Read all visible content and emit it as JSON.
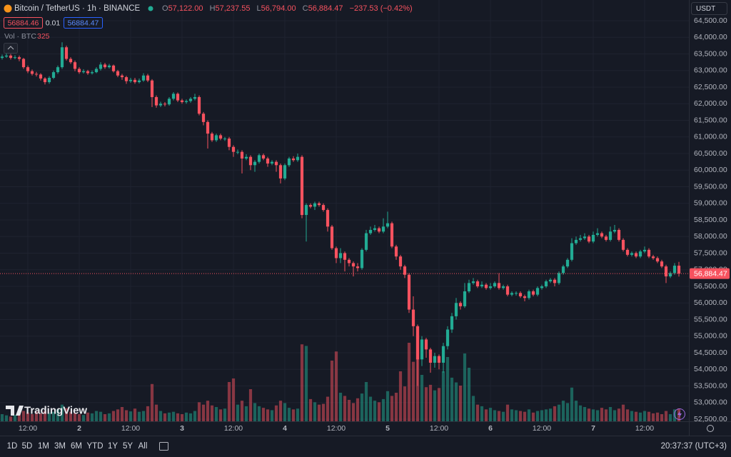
{
  "header": {
    "symbol": "Bitcoin / TetherUS · 1h · BINANCE",
    "ohlc_legend": [
      {
        "label": "O",
        "value": "57,122.00"
      },
      {
        "label": "H",
        "value": "57,237.55"
      },
      {
        "label": "L",
        "value": "56,794.00"
      },
      {
        "label": "C",
        "value": "56,884.47"
      }
    ],
    "change": "−237.53 (−0.42%)",
    "bid": "56884.46",
    "spread": "0.01",
    "ask": "56884.47",
    "volume_label": "Vol · BTC",
    "currency": "USDT",
    "brand": "TradingView"
  },
  "toolbar": {
    "ranges": [
      "1D",
      "5D",
      "1M",
      "3M",
      "6M",
      "YTD",
      "1Y",
      "5Y",
      "All"
    ],
    "clock": "20:37:37 (UTC+3)"
  },
  "chart_data": {
    "type": "candlestick",
    "up_color": "#22ab94",
    "down_color": "#f7525f",
    "grid": true,
    "last_price_label": "56,884.47",
    "xlim": [
      -0.5,
      160.33
    ],
    "xticks": [
      {
        "value": 6,
        "label": "12:00"
      },
      {
        "value": 18,
        "label": "2"
      },
      {
        "value": 30,
        "label": "12:00"
      },
      {
        "value": 42,
        "label": "3"
      },
      {
        "value": 54,
        "label": "12:00"
      },
      {
        "value": 66,
        "label": "4"
      },
      {
        "value": 78,
        "label": "12:00"
      },
      {
        "value": 90,
        "label": "5"
      },
      {
        "value": 102,
        "label": "12:00"
      },
      {
        "value": 114,
        "label": "6"
      },
      {
        "value": 126,
        "label": "12:00"
      },
      {
        "value": 138,
        "label": "7"
      },
      {
        "value": 150,
        "label": "12:00"
      }
    ],
    "ylim": [
      52436,
      65124
    ],
    "yticks": [
      {
        "value": 64500,
        "label": "64,500.00"
      },
      {
        "value": 64000,
        "label": "64,000.00"
      },
      {
        "value": 63500,
        "label": "63,500.00"
      },
      {
        "value": 63000,
        "label": "63,000.00"
      },
      {
        "value": 62500,
        "label": "62,500.00"
      },
      {
        "value": 62000,
        "label": "62,000.00"
      },
      {
        "value": 61500,
        "label": "61,500.00"
      },
      {
        "value": 61000,
        "label": "61,000.00"
      },
      {
        "value": 60500,
        "label": "60,500.00"
      },
      {
        "value": 60000,
        "label": "60,000.00"
      },
      {
        "value": 59500,
        "label": "59,500.00"
      },
      {
        "value": 59000,
        "label": "59,000.00"
      },
      {
        "value": 58500,
        "label": "58,500.00"
      },
      {
        "value": 58000,
        "label": "58,000.00"
      },
      {
        "value": 57500,
        "label": "57,500.00"
      },
      {
        "value": 57000,
        "label": "57,000.00"
      },
      {
        "value": 56500,
        "label": "56,500.00"
      },
      {
        "value": 56000,
        "label": "56,000.00"
      },
      {
        "value": 55500,
        "label": "55,500.00"
      },
      {
        "value": 55000,
        "label": "55,000.00"
      },
      {
        "value": 54500,
        "label": "54,500.00"
      },
      {
        "value": 54000,
        "label": "54,000.00"
      },
      {
        "value": 53500,
        "label": "53,500.00"
      },
      {
        "value": 53000,
        "label": "53,000.00"
      },
      {
        "value": 52500,
        "label": "52,500.00"
      }
    ],
    "volume_lim": [
      0,
      3600
    ],
    "open": [
      63380,
      63420,
      63450,
      63380,
      63400,
      63350,
      63100,
      62980,
      62900,
      62880,
      62760,
      62650,
      62780,
      62950,
      63100,
      63700,
      63350,
      63250,
      63050,
      62950,
      62980,
      62920,
      62950,
      63050,
      63180,
      63100,
      63150,
      62980,
      62850,
      62800,
      62680,
      62720,
      62650,
      62700,
      62850,
      62700,
      62200,
      61950,
      62000,
      61980,
      62150,
      62300,
      62100,
      62050,
      62080,
      62150,
      62200,
      61700,
      61450,
      61100,
      60900,
      61050,
      60950,
      60950,
      60700,
      60550,
      60550,
      60350,
      60400,
      60150,
      60250,
      60450,
      60350,
      60200,
      60250,
      60150,
      59750,
      60150,
      60350,
      60300,
      60400,
      58650,
      58950,
      58900,
      59000,
      58950,
      58800,
      58300,
      57650,
      57350,
      57500,
      57300,
      57200,
      57100,
      57050,
      57600,
      58100,
      58200,
      58250,
      58150,
      58300,
      58400,
      57700,
      57400,
      57100,
      56850,
      55800,
      55300,
      54300,
      54900,
      54600,
      54200,
      54400,
      54200,
      54700,
      55200,
      55600,
      56000,
      55900,
      56350,
      56600,
      56650,
      56500,
      56550,
      56450,
      56500,
      56600,
      56450,
      56500,
      56250,
      56300,
      56300,
      56200,
      56150,
      56350,
      56250,
      56450,
      56500,
      56650,
      56700,
      56600,
      56900,
      57100,
      57300,
      57800,
      57900,
      57950,
      58000,
      57850,
      58050,
      58100,
      58000,
      57900,
      58150,
      58200,
      57900,
      57600,
      57450,
      57500,
      57400,
      57550,
      57600,
      57400,
      57350,
      57250,
      57100,
      56800,
      56900,
      57122
    ],
    "high": [
      63480,
      63520,
      63500,
      63460,
      63450,
      63380,
      63150,
      63030,
      62960,
      62920,
      62800,
      62830,
      63000,
      63150,
      63850,
      63750,
      63400,
      63300,
      63100,
      63040,
      63020,
      63000,
      63100,
      63250,
      63230,
      63200,
      63180,
      63020,
      62900,
      62840,
      62780,
      62780,
      62760,
      62920,
      62900,
      62740,
      62250,
      62060,
      62050,
      62200,
      62350,
      62340,
      62150,
      62130,
      62200,
      62300,
      62250,
      61750,
      61500,
      61150,
      61100,
      61100,
      61000,
      61000,
      60750,
      60620,
      60600,
      60480,
      60450,
      60300,
      60500,
      60500,
      60400,
      60300,
      60300,
      60200,
      60200,
      60400,
      60420,
      60500,
      60450,
      59000,
      59000,
      59050,
      59050,
      59000,
      58850,
      58350,
      57700,
      57650,
      57550,
      57350,
      57250,
      57200,
      57650,
      58200,
      58300,
      58350,
      58300,
      58550,
      58750,
      58450,
      57750,
      57450,
      57150,
      56900,
      56200,
      55350,
      55000,
      54950,
      54650,
      54500,
      54450,
      54800,
      55300,
      55700,
      56150,
      56050,
      56600,
      56700,
      56750,
      56700,
      56650,
      56600,
      56600,
      56650,
      56900,
      56550,
      56550,
      56350,
      56350,
      56350,
      56250,
      56400,
      56400,
      56500,
      56550,
      56700,
      56750,
      56750,
      56950,
      57150,
      57350,
      57950,
      58000,
      58050,
      58100,
      58050,
      58150,
      58250,
      58150,
      58050,
      58300,
      58350,
      58250,
      57950,
      57650,
      57550,
      57550,
      57600,
      57700,
      57650,
      57450,
      57400,
      57300,
      57150,
      56950,
      57200,
      57237.55
    ],
    "low": [
      63330,
      63380,
      63330,
      63340,
      63280,
      63050,
      62920,
      62850,
      62820,
      62700,
      62580,
      62600,
      62740,
      62900,
      63050,
      63300,
      63200,
      62980,
      62900,
      62910,
      62870,
      62880,
      62920,
      63000,
      63050,
      63060,
      62940,
      62800,
      62720,
      62600,
      62630,
      62600,
      62610,
      62660,
      62650,
      61900,
      61880,
      61900,
      61920,
      61940,
      62100,
      62050,
      62000,
      62000,
      62030,
      62100,
      61650,
      61350,
      60650,
      60850,
      60850,
      60900,
      60880,
      60600,
      60400,
      60480,
      59900,
      60300,
      60000,
      59950,
      60200,
      60300,
      60100,
      60150,
      59950,
      59600,
      59700,
      60100,
      60250,
      60250,
      58550,
      57850,
      58850,
      58800,
      58900,
      58750,
      58150,
      57600,
      57200,
      57200,
      56950,
      57100,
      56800,
      56950,
      57000,
      57550,
      58050,
      58150,
      58100,
      58100,
      58250,
      57650,
      57300,
      57000,
      56750,
      55700,
      55000,
      53500,
      54100,
      54350,
      53900,
      54050,
      54000,
      53900,
      54600,
      55100,
      55500,
      55800,
      55850,
      56300,
      56550,
      56450,
      56450,
      56400,
      56400,
      56450,
      56400,
      56400,
      56200,
      56200,
      56220,
      56150,
      56050,
      56100,
      56200,
      56200,
      56400,
      56450,
      56600,
      56500,
      56550,
      56850,
      57050,
      57250,
      57750,
      57850,
      57900,
      57800,
      57800,
      58000,
      57950,
      57850,
      57850,
      58100,
      57850,
      57550,
      57400,
      57400,
      57350,
      57350,
      57500,
      57350,
      57300,
      57200,
      57050,
      56600,
      56750,
      56850,
      56794
    ],
    "close": [
      63420,
      63450,
      63380,
      63400,
      63350,
      63100,
      62980,
      62900,
      62880,
      62760,
      62650,
      62780,
      62950,
      63100,
      63700,
      63350,
      63250,
      63050,
      62950,
      62980,
      62920,
      62950,
      63050,
      63180,
      63100,
      63150,
      62980,
      62850,
      62800,
      62680,
      62720,
      62650,
      62700,
      62850,
      62700,
      62200,
      61950,
      62000,
      61980,
      62150,
      62300,
      62100,
      62050,
      62080,
      62150,
      62200,
      61700,
      61450,
      61100,
      60900,
      61050,
      60950,
      60950,
      60700,
      60550,
      60550,
      60350,
      60400,
      60150,
      60250,
      60450,
      60350,
      60200,
      60250,
      60150,
      59750,
      60150,
      60350,
      60300,
      60400,
      58650,
      58950,
      58900,
      59000,
      58950,
      58800,
      58300,
      57650,
      57350,
      57500,
      57300,
      57200,
      57100,
      57050,
      57600,
      58100,
      58200,
      58250,
      58150,
      58300,
      58400,
      57700,
      57400,
      57100,
      56850,
      55800,
      55300,
      54300,
      54900,
      54600,
      54200,
      54400,
      54200,
      54700,
      55200,
      55600,
      56000,
      55900,
      56350,
      56600,
      56650,
      56500,
      56550,
      56450,
      56500,
      56600,
      56450,
      56500,
      56250,
      56300,
      56300,
      56200,
      56150,
      56350,
      56250,
      56450,
      56500,
      56650,
      56700,
      56600,
      56900,
      57100,
      57300,
      57800,
      57900,
      57950,
      58000,
      57850,
      58050,
      58100,
      58000,
      57900,
      58150,
      58200,
      57900,
      57600,
      57450,
      57500,
      57400,
      57550,
      57600,
      57400,
      57350,
      57250,
      57100,
      56800,
      56900,
      57122,
      56884.47
    ],
    "volume": [
      180,
      150,
      120,
      160,
      200,
      260,
      220,
      180,
      240,
      200,
      260,
      220,
      240,
      300,
      420,
      330,
      240,
      200,
      180,
      160,
      220,
      200,
      260,
      240,
      180,
      200,
      260,
      300,
      360,
      280,
      250,
      320,
      240,
      260,
      380,
      940,
      420,
      260,
      200,
      220,
      240,
      200,
      180,
      220,
      200,
      260,
      480,
      420,
      520,
      400,
      360,
      300,
      320,
      990,
      1080,
      420,
      520,
      380,
      810,
      460,
      380,
      340,
      300,
      280,
      400,
      520,
      460,
      340,
      300,
      320,
      1940,
      1900,
      560,
      480,
      420,
      440,
      620,
      1530,
      1760,
      720,
      640,
      540,
      460,
      580,
      700,
      990,
      620,
      520,
      480,
      560,
      760,
      640,
      720,
      1260,
      880,
      1980,
      1500,
      2160,
      1170,
      860,
      920,
      780,
      840,
      1260,
      1620,
      1100,
      980,
      900,
      1710,
      1350,
      640,
      420,
      380,
      300,
      340,
      280,
      260,
      240,
      420,
      300,
      280,
      260,
      240,
      300,
      220,
      260,
      280,
      300,
      320,
      380,
      420,
      520,
      460,
      850,
      520,
      400,
      360,
      320,
      300,
      280,
      340,
      300,
      360,
      280,
      320,
      420,
      300,
      260,
      240,
      220,
      260,
      240,
      200,
      220,
      180,
      260,
      180,
      300,
      325
    ]
  }
}
